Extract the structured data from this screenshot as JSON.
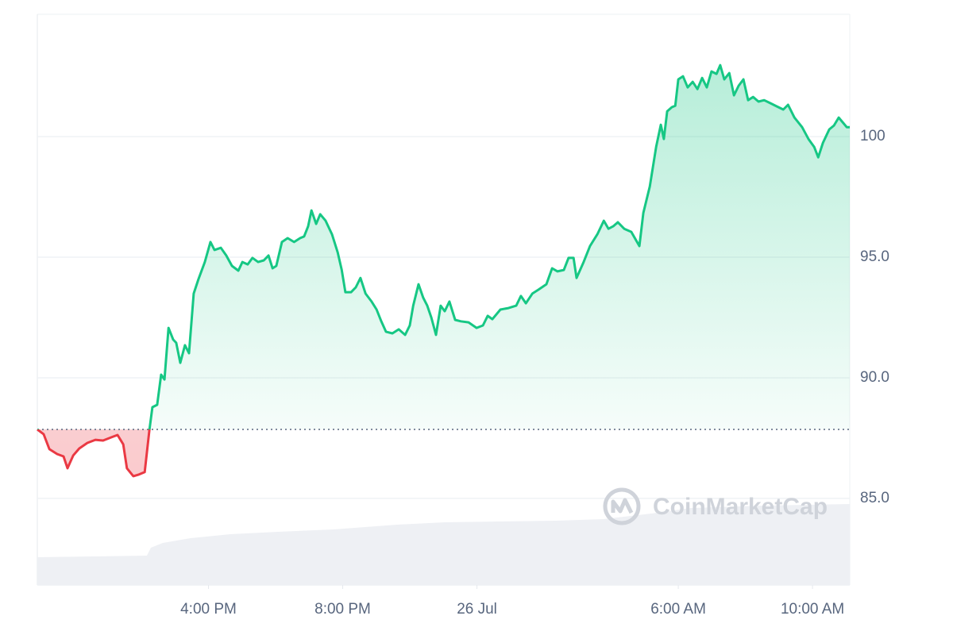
{
  "chart_data": {
    "type": "line",
    "watermark": "CoinMarketCap",
    "up_color": "#16c784",
    "down_color": "#ea3943",
    "grid": true,
    "baseline": 87.86,
    "xlim": [
      10.9,
      35.11
    ],
    "xticks": [
      {
        "value": 16,
        "label": "4:00 PM"
      },
      {
        "value": 20,
        "label": "8:00 PM"
      },
      {
        "value": 24,
        "label": "26 Jul"
      },
      {
        "value": 30,
        "label": "6:00 AM"
      },
      {
        "value": 34,
        "label": "10:00 AM"
      }
    ],
    "ylim": [
      81.41,
      105.07
    ],
    "yticks": [
      {
        "value": 85,
        "label": "85.0"
      },
      {
        "value": 90,
        "label": "90.0"
      },
      {
        "value": 95,
        "label": "95.0"
      },
      100
    ],
    "x": [
      10.9,
      11.09,
      11.26,
      11.49,
      11.68,
      11.8,
      11.97,
      12.15,
      12.39,
      12.63,
      12.86,
      13.1,
      13.29,
      13.46,
      13.57,
      13.76,
      13.93,
      14.1,
      14.24,
      14.33,
      14.47,
      14.59,
      14.69,
      14.81,
      14.95,
      15.04,
      15.16,
      15.3,
      15.42,
      15.56,
      15.7,
      15.89,
      16.06,
      16.18,
      16.37,
      16.53,
      16.7,
      16.89,
      17.01,
      17.17,
      17.31,
      17.48,
      17.65,
      17.79,
      17.91,
      18.02,
      18.19,
      18.36,
      18.55,
      18.73,
      18.85,
      18.97,
      19.07,
      19.21,
      19.33,
      19.49,
      19.68,
      19.85,
      19.97,
      20.08,
      20.25,
      20.39,
      20.53,
      20.68,
      20.86,
      21.01,
      21.15,
      21.29,
      21.48,
      21.67,
      21.86,
      22.0,
      22.1,
      22.26,
      22.4,
      22.52,
      22.64,
      22.78,
      22.92,
      23.04,
      23.18,
      23.35,
      23.52,
      23.75,
      23.99,
      24.18,
      24.32,
      24.46,
      24.7,
      24.94,
      25.17,
      25.31,
      25.46,
      25.65,
      25.83,
      26.07,
      26.24,
      26.4,
      26.59,
      26.73,
      26.88,
      26.97,
      27.18,
      27.37,
      27.59,
      27.78,
      27.92,
      28.06,
      28.2,
      28.39,
      28.6,
      28.84,
      28.96,
      29.15,
      29.34,
      29.48,
      29.57,
      29.67,
      29.81,
      29.91,
      30.0,
      30.14,
      30.28,
      30.43,
      30.57,
      30.71,
      30.85,
      30.99,
      31.14,
      31.25,
      31.37,
      31.52,
      31.66,
      31.8,
      31.94,
      32.08,
      32.23,
      32.39,
      32.56,
      32.75,
      32.94,
      33.13,
      33.27,
      33.46,
      33.69,
      33.88,
      34.05,
      34.17,
      34.31,
      34.5,
      34.64,
      34.78,
      34.92,
      35.02,
      35.11
    ],
    "values": [
      87.86,
      87.66,
      87.04,
      86.84,
      86.74,
      86.25,
      86.78,
      87.07,
      87.3,
      87.43,
      87.4,
      87.53,
      87.63,
      87.24,
      86.25,
      85.92,
      85.99,
      86.09,
      87.83,
      88.78,
      88.88,
      90.13,
      89.93,
      92.07,
      91.58,
      91.45,
      90.62,
      91.35,
      91.02,
      93.49,
      94.08,
      94.8,
      95.63,
      95.3,
      95.39,
      95.07,
      94.64,
      94.44,
      94.8,
      94.7,
      94.97,
      94.8,
      94.87,
      95.07,
      94.54,
      94.64,
      95.63,
      95.79,
      95.63,
      95.79,
      95.86,
      96.28,
      96.94,
      96.38,
      96.78,
      96.51,
      95.95,
      95.2,
      94.47,
      93.55,
      93.55,
      93.75,
      94.14,
      93.49,
      93.16,
      92.83,
      92.34,
      91.91,
      91.84,
      92.01,
      91.78,
      92.17,
      92.99,
      93.88,
      93.32,
      92.99,
      92.5,
      91.78,
      92.99,
      92.76,
      93.16,
      92.4,
      92.34,
      92.3,
      92.07,
      92.17,
      92.57,
      92.43,
      92.83,
      92.89,
      92.99,
      93.39,
      93.09,
      93.49,
      93.65,
      93.88,
      94.54,
      94.41,
      94.47,
      94.97,
      94.97,
      94.14,
      94.8,
      95.46,
      95.95,
      96.51,
      96.18,
      96.28,
      96.45,
      96.18,
      96.05,
      95.46,
      96.84,
      97.93,
      99.57,
      100.49,
      99.9,
      101.05,
      101.22,
      101.28,
      102.37,
      102.5,
      102.04,
      102.27,
      101.97,
      102.43,
      102.04,
      102.7,
      102.6,
      102.96,
      102.37,
      102.63,
      101.71,
      102.11,
      102.37,
      101.51,
      101.64,
      101.45,
      101.51,
      101.38,
      101.25,
      101.12,
      101.32,
      100.79,
      100.39,
      99.9,
      99.57,
      99.14,
      99.74,
      100.3,
      100.46,
      100.79,
      100.56,
      100.39,
      100.39
    ]
  }
}
